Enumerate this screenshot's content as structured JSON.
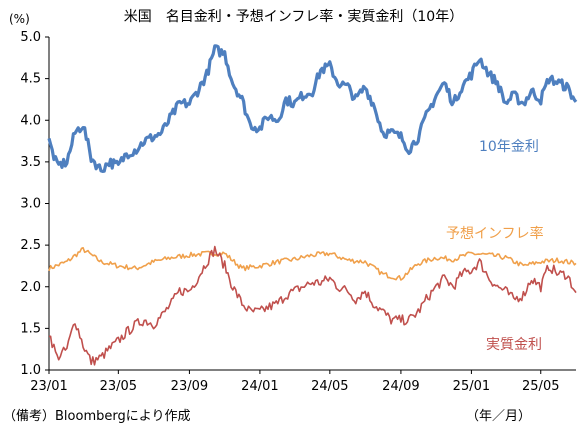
{
  "chart_data": {
    "type": "line",
    "title": "米国　名目金利・予想インフレ率・実質金利（10年）",
    "ylabel": "(%)",
    "xlabel": "（年／月）",
    "ylim": [
      1.0,
      5.0
    ],
    "yticks": [
      "1.0",
      "1.5",
      "2.0",
      "2.5",
      "3.0",
      "3.5",
      "4.0",
      "4.5",
      "5.0"
    ],
    "xticks": [
      "23/01",
      "23/05",
      "23/09",
      "24/01",
      "24/05",
      "24/09",
      "25/01",
      "25/05"
    ],
    "grid": false,
    "legend": "inline labels beside lines",
    "series": [
      {
        "name": "10年金利",
        "color": "#4e7fbf",
        "x": [
          "2023-01-01",
          "2023-01-15",
          "2023-02-01",
          "2023-02-15",
          "2023-03-01",
          "2023-03-15",
          "2023-04-01",
          "2023-04-15",
          "2023-05-01",
          "2023-05-15",
          "2023-06-01",
          "2023-06-15",
          "2023-07-01",
          "2023-07-15",
          "2023-08-01",
          "2023-08-15",
          "2023-09-01",
          "2023-09-15",
          "2023-10-01",
          "2023-10-15",
          "2023-11-01",
          "2023-11-15",
          "2023-12-01",
          "2023-12-15",
          "2024-01-01",
          "2024-01-15",
          "2024-02-01",
          "2024-02-15",
          "2024-03-01",
          "2024-03-15",
          "2024-04-01",
          "2024-04-15",
          "2024-05-01",
          "2024-05-15",
          "2024-06-01",
          "2024-06-15",
          "2024-07-01",
          "2024-07-15",
          "2024-08-01",
          "2024-08-15",
          "2024-09-01",
          "2024-09-15",
          "2024-10-01",
          "2024-10-15",
          "2024-11-01",
          "2024-11-15",
          "2024-12-01",
          "2024-12-15",
          "2025-01-01",
          "2025-01-15",
          "2025-02-01",
          "2025-02-15",
          "2025-03-01",
          "2025-03-15",
          "2025-04-01",
          "2025-04-15",
          "2025-05-01",
          "2025-05-15",
          "2025-06-01",
          "2025-06-15",
          "2025-07-01"
        ],
        "values": [
          3.75,
          3.45,
          3.5,
          3.85,
          3.95,
          3.55,
          3.4,
          3.5,
          3.45,
          3.6,
          3.65,
          3.75,
          3.8,
          3.85,
          4.05,
          4.2,
          4.2,
          4.35,
          4.55,
          4.85,
          4.8,
          4.45,
          4.25,
          3.95,
          3.9,
          4.05,
          4.0,
          4.25,
          4.2,
          4.3,
          4.35,
          4.6,
          4.65,
          4.45,
          4.4,
          4.25,
          4.4,
          4.2,
          3.85,
          3.85,
          3.8,
          3.65,
          3.8,
          4.05,
          4.3,
          4.45,
          4.2,
          4.4,
          4.55,
          4.75,
          4.55,
          4.45,
          4.2,
          4.3,
          4.2,
          4.35,
          4.25,
          4.5,
          4.45,
          4.4,
          4.22
        ]
      },
      {
        "name": "予想インフレ率",
        "color": "#f0a04b",
        "x": [
          "2023-01-01",
          "2023-02-01",
          "2023-03-01",
          "2023-04-01",
          "2023-05-01",
          "2023-06-01",
          "2023-07-01",
          "2023-08-01",
          "2023-09-01",
          "2023-10-01",
          "2023-11-01",
          "2023-12-01",
          "2024-01-01",
          "2024-02-01",
          "2024-03-01",
          "2024-04-01",
          "2024-05-01",
          "2024-06-01",
          "2024-07-01",
          "2024-08-01",
          "2024-09-01",
          "2024-10-01",
          "2024-11-01",
          "2024-12-01",
          "2025-01-01",
          "2025-02-01",
          "2025-03-01",
          "2025-04-01",
          "2025-05-01",
          "2025-06-01",
          "2025-07-01"
        ],
        "values": [
          2.22,
          2.3,
          2.45,
          2.3,
          2.25,
          2.22,
          2.3,
          2.35,
          2.38,
          2.4,
          2.4,
          2.22,
          2.25,
          2.3,
          2.33,
          2.38,
          2.4,
          2.32,
          2.3,
          2.15,
          2.1,
          2.28,
          2.35,
          2.33,
          2.4,
          2.38,
          2.35,
          2.25,
          2.3,
          2.32,
          2.28
        ]
      },
      {
        "name": "実質金利",
        "color": "#c0504d",
        "x": [
          "2023-01-01",
          "2023-01-15",
          "2023-02-01",
          "2023-02-15",
          "2023-03-01",
          "2023-03-15",
          "2023-04-01",
          "2023-04-15",
          "2023-05-01",
          "2023-05-15",
          "2023-06-01",
          "2023-06-15",
          "2023-07-01",
          "2023-07-15",
          "2023-08-01",
          "2023-08-15",
          "2023-09-01",
          "2023-09-15",
          "2023-10-01",
          "2023-10-15",
          "2023-11-01",
          "2023-11-15",
          "2023-12-01",
          "2023-12-15",
          "2024-01-01",
          "2024-01-15",
          "2024-02-01",
          "2024-02-15",
          "2024-03-01",
          "2024-03-15",
          "2024-04-01",
          "2024-04-15",
          "2024-05-01",
          "2024-05-15",
          "2024-06-01",
          "2024-06-15",
          "2024-07-01",
          "2024-07-15",
          "2024-08-01",
          "2024-08-15",
          "2024-09-01",
          "2024-09-15",
          "2024-10-01",
          "2024-10-15",
          "2024-11-01",
          "2024-11-15",
          "2024-12-01",
          "2024-12-15",
          "2025-01-01",
          "2025-01-15",
          "2025-02-01",
          "2025-02-15",
          "2025-03-01",
          "2025-03-15",
          "2025-04-01",
          "2025-04-15",
          "2025-05-01",
          "2025-05-15",
          "2025-06-01",
          "2025-06-15",
          "2025-07-01"
        ],
        "values": [
          1.45,
          1.15,
          1.25,
          1.6,
          1.3,
          1.1,
          1.15,
          1.25,
          1.35,
          1.45,
          1.55,
          1.6,
          1.55,
          1.65,
          1.8,
          1.95,
          1.95,
          2.1,
          2.3,
          2.45,
          2.25,
          2.0,
          1.8,
          1.7,
          1.7,
          1.75,
          1.8,
          1.9,
          1.95,
          2.0,
          2.05,
          2.05,
          2.1,
          2.0,
          1.95,
          1.85,
          1.95,
          1.8,
          1.7,
          1.6,
          1.6,
          1.6,
          1.7,
          1.85,
          2.0,
          2.1,
          2.0,
          2.15,
          2.2,
          2.3,
          2.1,
          2.0,
          1.95,
          1.85,
          1.9,
          2.1,
          2.0,
          2.25,
          2.15,
          2.15,
          1.93
        ]
      }
    ]
  }
}
